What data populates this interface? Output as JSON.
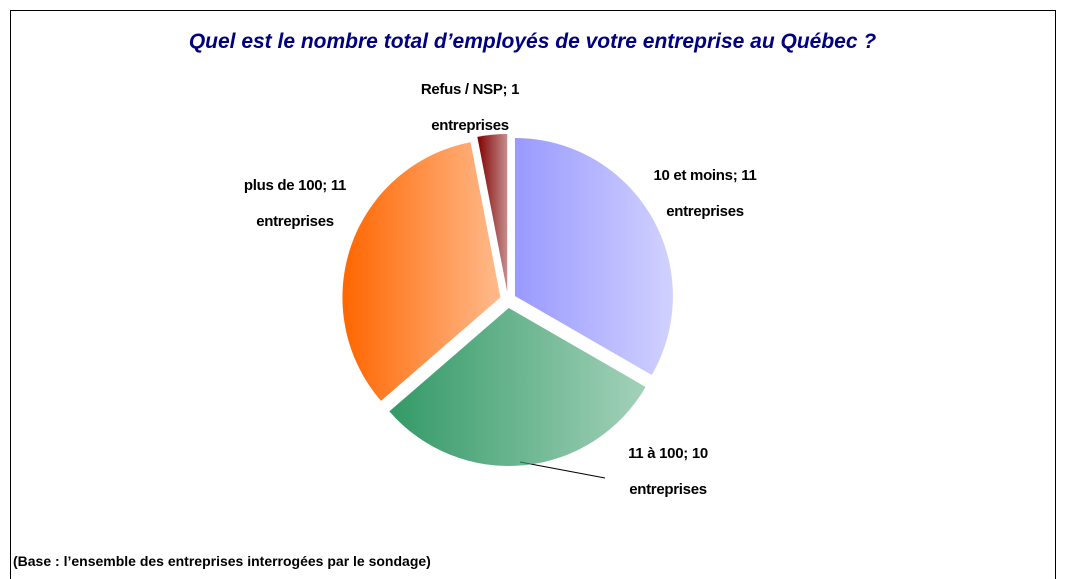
{
  "chart_data": {
    "type": "pie",
    "title": "Quel est le nombre total d’employés de votre entreprise au Québec ?",
    "values": [
      11,
      10,
      11,
      1
    ],
    "value_labels": [
      "10 et moins; 11 entreprises",
      "11 à 100; 10 entreprises",
      "plus de 100; 11 entreprises",
      "Refus / NSP; 1 entreprises"
    ],
    "colors": [
      "#9999ff",
      "#339966",
      "#ff6600",
      "#800000"
    ],
    "note": "(Base : l’ensemble des entreprises interrogées par le sondage)"
  }
}
